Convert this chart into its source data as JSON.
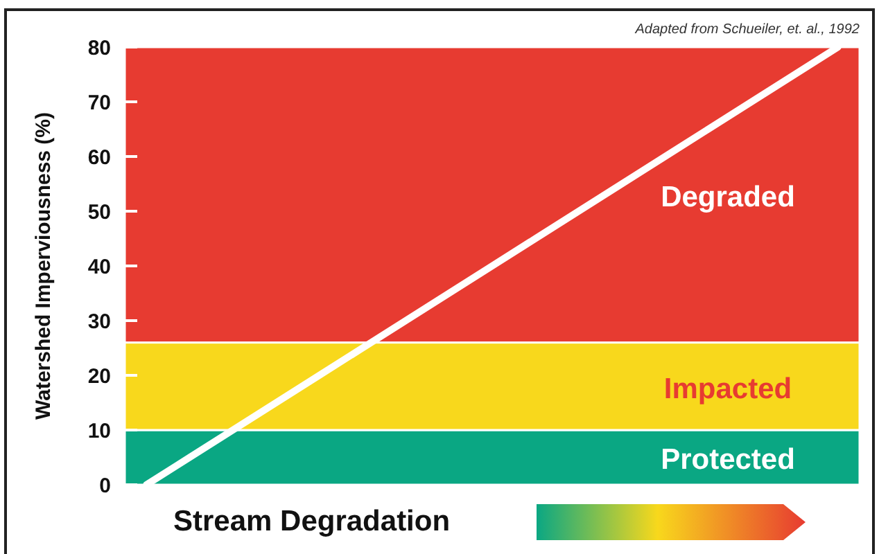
{
  "chart_data": {
    "type": "line",
    "ylabel": "Watershed Imperviousness (%)",
    "xlabel": "Stream Degradation",
    "annotations": [
      "Adapted from Schueiler, et. al., 1992"
    ],
    "categories": [
      null,
      null,
      null,
      null,
      null,
      null,
      null,
      null,
      null,
      null,
      null,
      null,
      null,
      null,
      null,
      null,
      null
    ],
    "series": [
      {
        "color": "#ffffff",
        "values": [
          0,
          5,
          10,
          15,
          20,
          25,
          30,
          35,
          40,
          45,
          50,
          55,
          60,
          65,
          70,
          75,
          80
        ]
      }
    ],
    "ylim": [
      0,
      80
    ],
    "yticks": [
      0,
      10,
      20,
      30,
      40,
      50,
      60,
      70,
      80
    ],
    "grid": false,
    "marker": "none",
    "line_style": "solid",
    "bands": [
      {
        "axis": "y",
        "from": 0,
        "to": 10,
        "label": "Protected",
        "color": "#0aa783"
      },
      {
        "axis": "y",
        "from": 10,
        "to": 26,
        "label": "Impacted",
        "color": "#f8d81c"
      },
      {
        "axis": "y",
        "from": 26,
        "to": 80,
        "label": "Degraded",
        "color": "#e73b31"
      }
    ]
  }
}
